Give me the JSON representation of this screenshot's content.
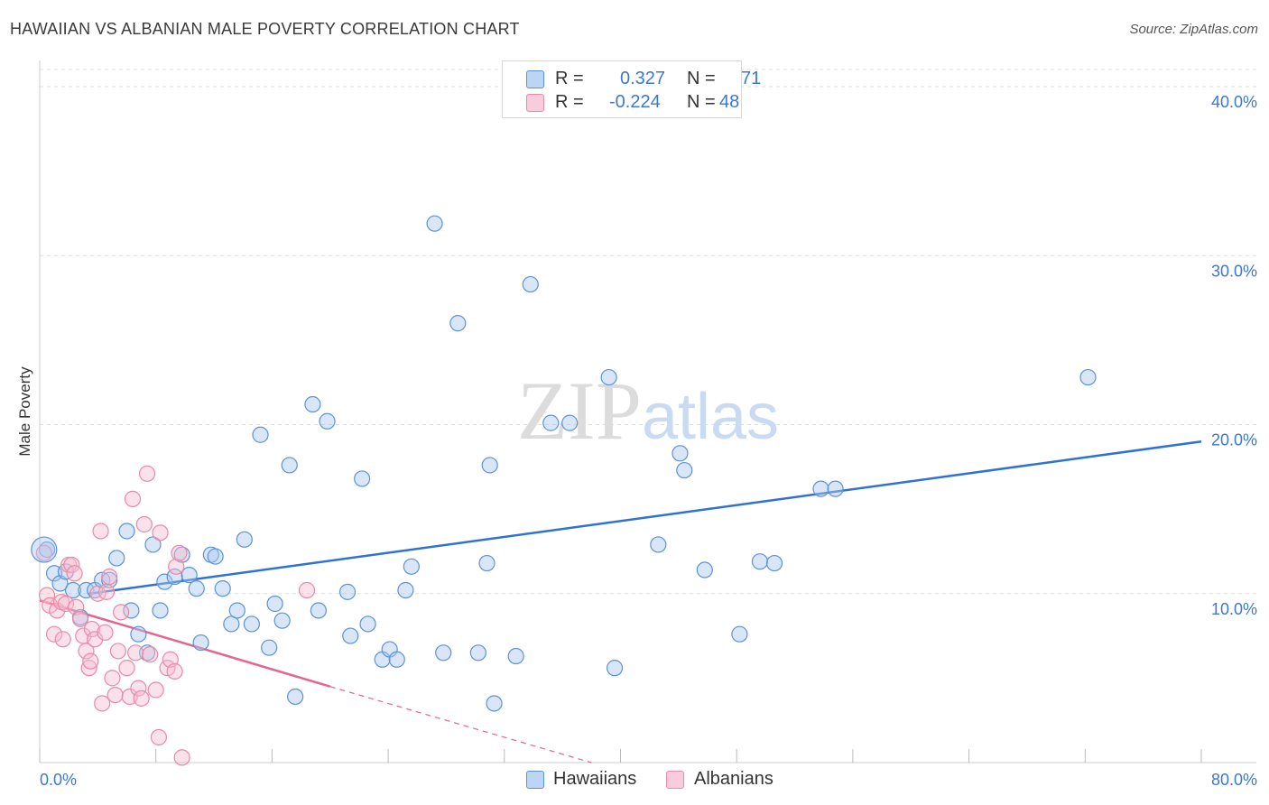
{
  "title": "HAWAIIAN VS ALBANIAN MALE POVERTY CORRELATION CHART",
  "source": "Source: ZipAtlas.com",
  "legend": {
    "rows": [
      {
        "r_label": "R =",
        "r_value": "0.327",
        "n_label": "N =",
        "n_value": "71"
      },
      {
        "r_label": "R =",
        "r_value": "-0.224",
        "n_label": "N =",
        "n_value": "48"
      }
    ]
  },
  "colors": {
    "hawaiian_fill": "#a8c8f0",
    "hawaiian_stroke": "#5b93d8",
    "hawaiian_line": "#2f72d4",
    "albanian_fill": "#f7bccf",
    "albanian_stroke": "#e88aa8",
    "albanian_line": "#e5648e",
    "tick_text": "#3b78d4"
  },
  "chart_data": {
    "type": "scatter",
    "title": "HAWAIIAN VS ALBANIAN MALE POVERTY CORRELATION CHART",
    "xlabel": "",
    "ylabel": "Male Poverty",
    "xlim": [
      0,
      80
    ],
    "ylim": [
      0,
      40
    ],
    "x_tick_labels": [
      "0.0%",
      "80.0%"
    ],
    "y_tick_labels": [
      "10.0%",
      "20.0%",
      "30.0%",
      "40.0%"
    ],
    "y_ticks": [
      10,
      20,
      30,
      40
    ],
    "grid": "horizontal dashed",
    "legend_position": "top-center",
    "watermark": "ZIPatlas",
    "series": [
      {
        "name": "Hawaiians",
        "r": 0.327,
        "n": 71,
        "trend": {
          "x": [
            0,
            80
          ],
          "y": [
            9.6,
            19.0
          ],
          "dashed_after": null
        },
        "points": [
          [
            0.5,
            12.6
          ],
          [
            1.0,
            11.2
          ],
          [
            1.4,
            10.6
          ],
          [
            1.8,
            11.3
          ],
          [
            2.3,
            10.2
          ],
          [
            2.8,
            8.6
          ],
          [
            3.2,
            10.2
          ],
          [
            3.8,
            10.2
          ],
          [
            4.3,
            10.8
          ],
          [
            4.8,
            10.8
          ],
          [
            5.3,
            12.1
          ],
          [
            6.0,
            13.7
          ],
          [
            6.3,
            9.0
          ],
          [
            6.8,
            7.6
          ],
          [
            7.4,
            6.5
          ],
          [
            7.8,
            12.9
          ],
          [
            8.3,
            9.0
          ],
          [
            8.6,
            10.7
          ],
          [
            9.3,
            11.0
          ],
          [
            9.8,
            12.3
          ],
          [
            10.3,
            11.1
          ],
          [
            10.8,
            10.3
          ],
          [
            11.1,
            7.1
          ],
          [
            11.8,
            12.3
          ],
          [
            12.1,
            12.2
          ],
          [
            12.6,
            10.3
          ],
          [
            13.2,
            8.2
          ],
          [
            13.6,
            9.0
          ],
          [
            14.1,
            13.2
          ],
          [
            14.6,
            8.2
          ],
          [
            15.2,
            19.4
          ],
          [
            15.8,
            6.8
          ],
          [
            16.2,
            9.4
          ],
          [
            16.7,
            8.4
          ],
          [
            17.2,
            17.6
          ],
          [
            17.6,
            3.9
          ],
          [
            18.8,
            21.2
          ],
          [
            19.2,
            9.0
          ],
          [
            19.8,
            20.2
          ],
          [
            21.2,
            10.1
          ],
          [
            21.4,
            7.5
          ],
          [
            22.2,
            16.8
          ],
          [
            22.6,
            8.2
          ],
          [
            23.6,
            6.1
          ],
          [
            24.1,
            6.7
          ],
          [
            24.6,
            6.1
          ],
          [
            25.2,
            10.2
          ],
          [
            25.6,
            11.6
          ],
          [
            27.2,
            31.9
          ],
          [
            27.8,
            6.5
          ],
          [
            28.8,
            26.0
          ],
          [
            30.2,
            6.5
          ],
          [
            30.8,
            11.8
          ],
          [
            31.0,
            17.6
          ],
          [
            31.3,
            3.5
          ],
          [
            32.8,
            6.3
          ],
          [
            33.8,
            28.3
          ],
          [
            35.2,
            20.1
          ],
          [
            36.5,
            20.1
          ],
          [
            39.2,
            22.8
          ],
          [
            39.6,
            5.6
          ],
          [
            42.6,
            12.9
          ],
          [
            44.1,
            18.3
          ],
          [
            44.4,
            17.3
          ],
          [
            45.8,
            11.4
          ],
          [
            48.2,
            7.6
          ],
          [
            49.6,
            11.9
          ],
          [
            50.6,
            11.8
          ],
          [
            53.8,
            16.2
          ],
          [
            54.8,
            16.2
          ],
          [
            72.2,
            22.8
          ]
        ]
      },
      {
        "name": "Albanians",
        "r": -0.224,
        "n": 48,
        "trend": {
          "x": [
            0,
            20
          ],
          "y": [
            9.6,
            4.5
          ],
          "dashed_to": [
            38,
            0
          ]
        },
        "points": [
          [
            0.3,
            12.4
          ],
          [
            0.5,
            9.9
          ],
          [
            0.7,
            9.3
          ],
          [
            1.0,
            7.6
          ],
          [
            1.2,
            9.0
          ],
          [
            1.5,
            9.5
          ],
          [
            1.6,
            7.3
          ],
          [
            1.8,
            9.4
          ],
          [
            2.0,
            11.7
          ],
          [
            2.2,
            11.7
          ],
          [
            2.4,
            11.2
          ],
          [
            2.5,
            9.2
          ],
          [
            2.8,
            8.5
          ],
          [
            3.0,
            7.5
          ],
          [
            3.2,
            6.6
          ],
          [
            3.4,
            5.6
          ],
          [
            3.5,
            6.0
          ],
          [
            3.6,
            7.9
          ],
          [
            3.8,
            7.3
          ],
          [
            4.0,
            10.0
          ],
          [
            4.2,
            13.7
          ],
          [
            4.3,
            3.5
          ],
          [
            4.5,
            7.7
          ],
          [
            4.6,
            10.1
          ],
          [
            4.8,
            11.0
          ],
          [
            5.0,
            5.0
          ],
          [
            5.2,
            4.0
          ],
          [
            5.4,
            6.6
          ],
          [
            5.6,
            8.9
          ],
          [
            6.0,
            5.6
          ],
          [
            6.2,
            3.9
          ],
          [
            6.4,
            15.6
          ],
          [
            6.6,
            6.5
          ],
          [
            6.8,
            4.4
          ],
          [
            7.0,
            3.8
          ],
          [
            7.2,
            14.1
          ],
          [
            7.4,
            17.1
          ],
          [
            7.6,
            6.4
          ],
          [
            8.0,
            4.3
          ],
          [
            8.2,
            1.5
          ],
          [
            8.3,
            13.6
          ],
          [
            8.8,
            5.6
          ],
          [
            9.0,
            6.1
          ],
          [
            9.3,
            5.4
          ],
          [
            9.4,
            11.6
          ],
          [
            9.6,
            12.4
          ],
          [
            9.8,
            0.3
          ],
          [
            18.4,
            10.2
          ]
        ]
      }
    ]
  },
  "bottom_legend": {
    "items": [
      {
        "label": "Hawaiians"
      },
      {
        "label": "Albanians"
      }
    ]
  }
}
